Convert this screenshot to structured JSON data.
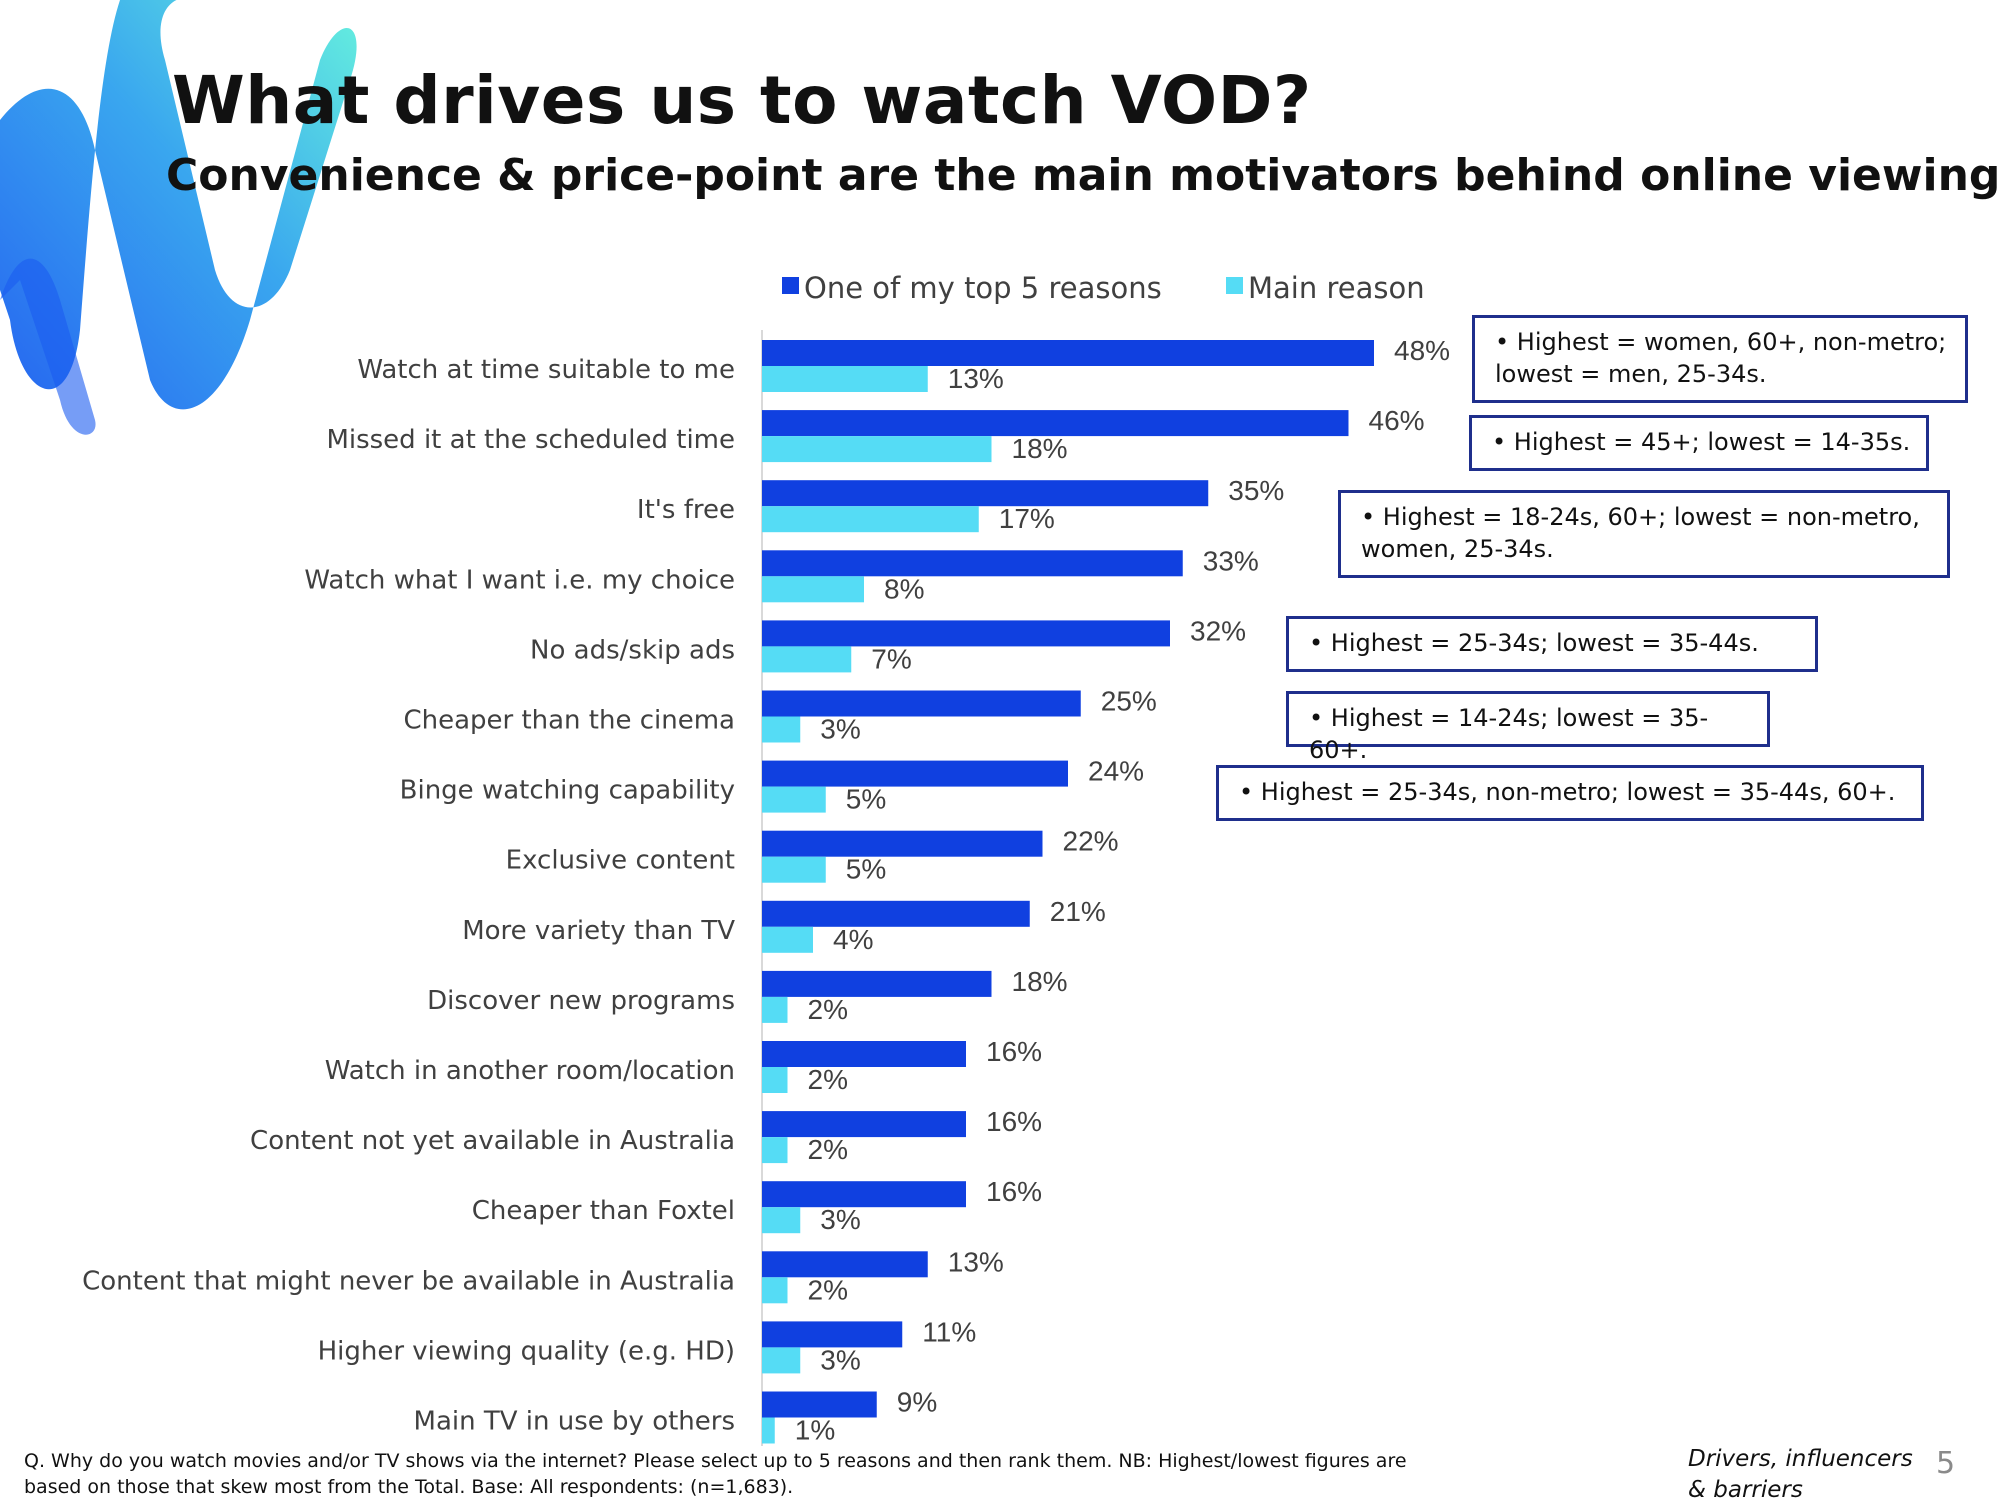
{
  "header": {
    "title": "What drives us to watch VOD?",
    "subtitle": "Convenience & price-point are the main motivators behind online viewing"
  },
  "colors": {
    "series_top5": "#1040e0",
    "series_main": "#55dcf5",
    "box_border": "#1f2f8c"
  },
  "chart_data": {
    "type": "bar",
    "orientation": "horizontal",
    "categories": [
      "Watch at time suitable to me",
      "Missed it at the scheduled time",
      "It's free",
      "Watch what I want i.e. my choice",
      "No ads/skip ads",
      "Cheaper than the cinema",
      "Binge watching capability",
      "Exclusive content",
      "More variety than TV",
      "Discover new programs",
      "Watch in another room/location",
      "Content not yet available in Australia",
      "Cheaper than Foxtel",
      "Content that might never be available in Australia",
      "Higher viewing quality (e.g. HD)",
      "Main TV in use by others"
    ],
    "series": [
      {
        "name": "One of my top 5 reasons",
        "values": [
          48,
          46,
          35,
          33,
          32,
          25,
          24,
          22,
          21,
          18,
          16,
          16,
          16,
          13,
          11,
          9
        ]
      },
      {
        "name": "Main reason",
        "values": [
          13,
          18,
          17,
          8,
          7,
          3,
          5,
          5,
          4,
          2,
          2,
          2,
          3,
          2,
          3,
          1
        ]
      }
    ],
    "value_suffix": "%",
    "xlim": [
      0,
      50
    ],
    "legend_position": "top",
    "grid": false
  },
  "annotations": [
    {
      "category_index": 0,
      "text": "• Highest = women, 60+, non-metro; lowest = men, 25-34s."
    },
    {
      "category_index": 1,
      "text": "• Highest = 45+; lowest = 14-35s."
    },
    {
      "category_index": 2,
      "text": "• Highest = 18-24s, 60+; lowest = non-metro, women, 25-34s."
    },
    {
      "category_index": 4,
      "text": "• Highest = 25-34s; lowest = 35-44s."
    },
    {
      "category_index": 5,
      "text": "• Highest = 14-24s; lowest = 35-60+."
    },
    {
      "category_index": 6,
      "text": "• Highest = 25-34s, non-metro; lowest = 35-44s, 60+."
    }
  ],
  "footer": {
    "note": "Q. Why do you watch movies and/or TV shows via the internet? Please select up to 5 reasons and then rank them. NB: Highest/lowest figures are based on those that skew most from the Total. Base: All respondents: (n=1,683).",
    "section_line1": "Drivers, influencers",
    "section_line2": "& barriers",
    "page_number": "5"
  }
}
